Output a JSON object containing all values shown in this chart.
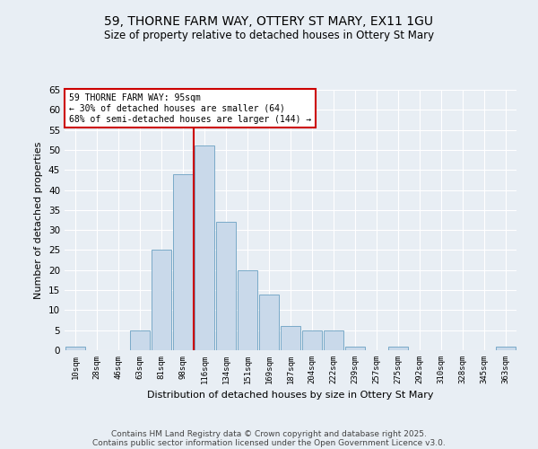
{
  "title_line1": "59, THORNE FARM WAY, OTTERY ST MARY, EX11 1GU",
  "title_line2": "Size of property relative to detached houses in Ottery St Mary",
  "categories": [
    "10sqm",
    "28sqm",
    "46sqm",
    "63sqm",
    "81sqm",
    "98sqm",
    "116sqm",
    "134sqm",
    "151sqm",
    "169sqm",
    "187sqm",
    "204sqm",
    "222sqm",
    "239sqm",
    "257sqm",
    "275sqm",
    "292sqm",
    "310sqm",
    "328sqm",
    "345sqm",
    "363sqm"
  ],
  "values": [
    1,
    0,
    0,
    5,
    25,
    44,
    51,
    32,
    20,
    14,
    6,
    5,
    5,
    1,
    0,
    1,
    0,
    0,
    0,
    0,
    1
  ],
  "bar_color": "#c9d9ea",
  "bar_edge_color": "#7aaac8",
  "vline_x": 5.5,
  "vline_color": "#cc0000",
  "ylabel": "Number of detached properties",
  "xlabel": "Distribution of detached houses by size in Ottery St Mary",
  "annotation_title": "59 THORNE FARM WAY: 95sqm",
  "annotation_line2": "← 30% of detached houses are smaller (64)",
  "annotation_line3": "68% of semi-detached houses are larger (144) →",
  "annotation_box_color": "#ffffff",
  "annotation_box_edge": "#cc0000",
  "footer_line1": "Contains HM Land Registry data © Crown copyright and database right 2025.",
  "footer_line2": "Contains public sector information licensed under the Open Government Licence v3.0.",
  "background_color": "#e8eef4",
  "ylim": [
    0,
    65
  ],
  "yticks": [
    0,
    5,
    10,
    15,
    20,
    25,
    30,
    35,
    40,
    45,
    50,
    55,
    60,
    65
  ]
}
